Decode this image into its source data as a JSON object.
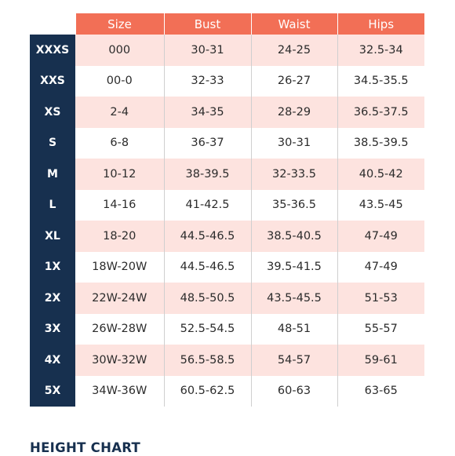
{
  "size_chart": {
    "headers": [
      "Size",
      "Bust",
      "Waist",
      "Hips"
    ],
    "rows": [
      {
        "label": "XXXS",
        "size": "000",
        "bust": "30-31",
        "waist": "24-25",
        "hips": "32.5-34"
      },
      {
        "label": "XXS",
        "size": "00-0",
        "bust": "32-33",
        "waist": "26-27",
        "hips": "34.5-35.5"
      },
      {
        "label": "XS",
        "size": "2-4",
        "bust": "34-35",
        "waist": "28-29",
        "hips": "36.5-37.5"
      },
      {
        "label": "S",
        "size": "6-8",
        "bust": "36-37",
        "waist": "30-31",
        "hips": "38.5-39.5"
      },
      {
        "label": "M",
        "size": "10-12",
        "bust": "38-39.5",
        "waist": "32-33.5",
        "hips": "40.5-42"
      },
      {
        "label": "L",
        "size": "14-16",
        "bust": "41-42.5",
        "waist": "35-36.5",
        "hips": "43.5-45"
      },
      {
        "label": "XL",
        "size": "18-20",
        "bust": "44.5-46.5",
        "waist": "38.5-40.5",
        "hips": "47-49"
      },
      {
        "label": "1X",
        "size": "18W-20W",
        "bust": "44.5-46.5",
        "waist": "39.5-41.5",
        "hips": "47-49"
      },
      {
        "label": "2X",
        "size": "22W-24W",
        "bust": "48.5-50.5",
        "waist": "43.5-45.5",
        "hips": "51-53"
      },
      {
        "label": "3X",
        "size": "26W-28W",
        "bust": "52.5-54.5",
        "waist": "48-51",
        "hips": "55-57"
      },
      {
        "label": "4X",
        "size": "30W-32W",
        "bust": "56.5-58.5",
        "waist": "54-57",
        "hips": "59-61"
      },
      {
        "label": "5X",
        "size": "34W-36W",
        "bust": "60.5-62.5",
        "waist": "60-63",
        "hips": "63-65"
      }
    ]
  },
  "height_chart": {
    "title": "HEIGHT CHART"
  },
  "colors": {
    "header_bg": "#f26f56",
    "label_bg": "#17304f",
    "shaded_row_bg": "#fde3df",
    "title_color": "#17304f"
  }
}
